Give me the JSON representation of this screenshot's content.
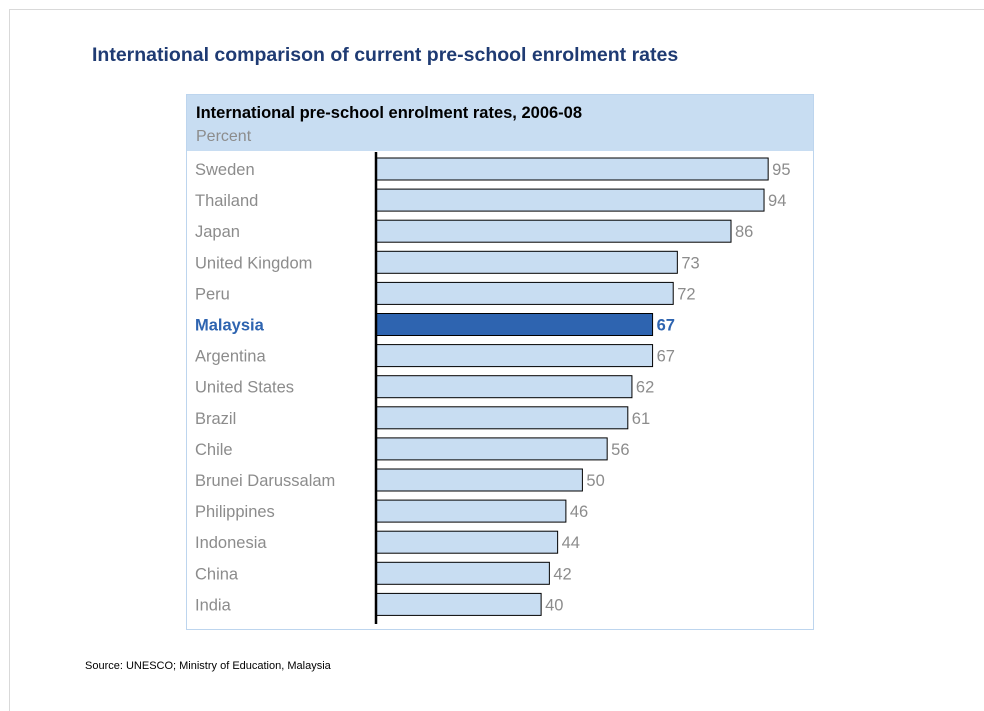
{
  "page": {
    "title": "International comparison of current pre-school enrolment rates",
    "source": "Source: UNESCO; Ministry of Education, Malaysia"
  },
  "colors": {
    "bar_fill": "#c8ddf2",
    "highlight_fill": "#2e64b0",
    "highlight_text": "#2e64b0",
    "label_text": "#8c8c8c",
    "title_text": "#1f3b73",
    "header_fill": "#c8ddf2"
  },
  "chart_data": {
    "type": "bar",
    "orientation": "horizontal",
    "title": "International pre-school enrolment rates, 2006-08",
    "subtitle": "Percent",
    "categories": [
      "Sweden",
      "Thailand",
      "Japan",
      "United Kingdom",
      "Peru",
      "Malaysia",
      "Argentina",
      "United States",
      "Brazil",
      "Chile",
      "Brunei Darussalam",
      "Philippines",
      "Indonesia",
      "China",
      "India"
    ],
    "values": [
      95,
      94,
      86,
      73,
      72,
      67,
      67,
      62,
      61,
      56,
      50,
      46,
      44,
      42,
      40
    ],
    "highlight": "Malaysia",
    "xlim": [
      0,
      100
    ],
    "grid": false,
    "legend": "none"
  }
}
